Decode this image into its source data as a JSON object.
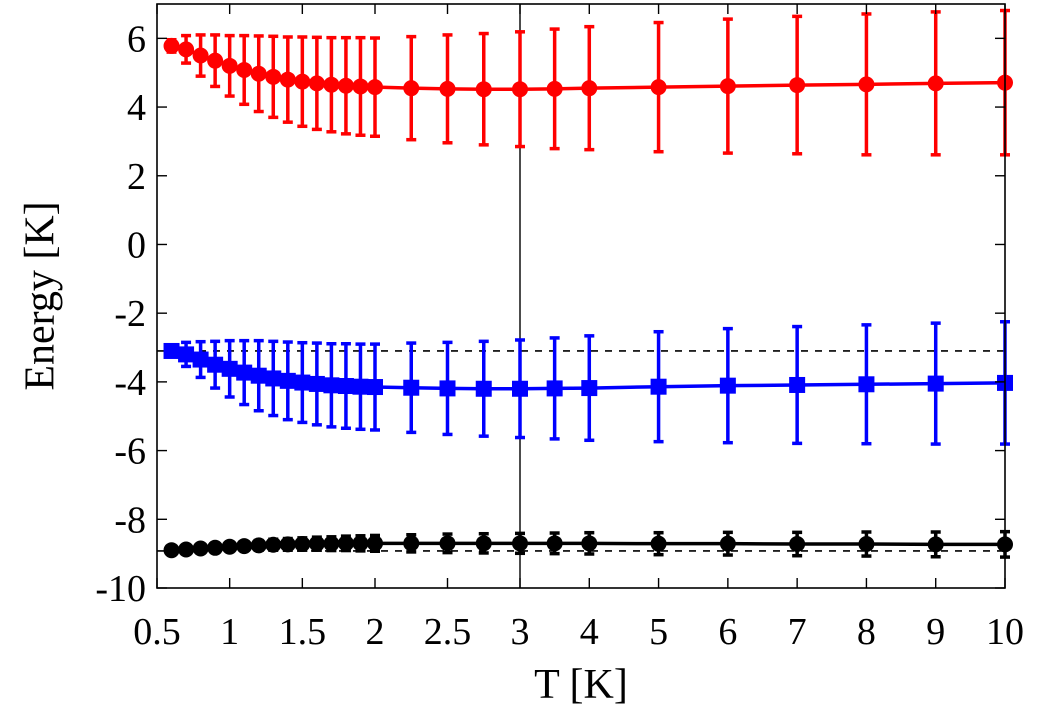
{
  "chart_data": {
    "type": "line",
    "title": "",
    "xlabel": "T [K]",
    "ylabel": "Energy [K]",
    "ylim": [
      -10,
      7
    ],
    "grid": false,
    "legend": "none",
    "x_scale": "piecewise-linear",
    "x_scale_note_breakpoints": [
      0.5,
      2,
      3,
      10
    ],
    "x_ticks": [
      0.5,
      1,
      1.5,
      2,
      2.5,
      3,
      4,
      5,
      6,
      7,
      8,
      9,
      10
    ],
    "x_tick_labels": [
      "0.5",
      "1",
      "1.5",
      "2",
      "2.5",
      "3",
      "4",
      "5",
      "6",
      "7",
      "8",
      "9",
      "10"
    ],
    "y_ticks": [
      -10,
      -8,
      -6,
      -4,
      -2,
      0,
      2,
      4,
      6
    ],
    "y_tick_labels": [
      "-10",
      "-8",
      "-6",
      "-4",
      "-2",
      "0",
      "2",
      "4",
      "6"
    ],
    "vertical_lines": [
      3
    ],
    "reference_lines": [
      {
        "y": -3.1,
        "color": "#000000",
        "style": "dashed"
      },
      {
        "y": -8.92,
        "color": "#000000",
        "style": "dashed"
      }
    ],
    "series": [
      {
        "color": "#ff0000",
        "marker": "circle",
        "x": [
          0.6,
          0.7,
          0.8,
          0.9,
          1.0,
          1.1,
          1.2,
          1.3,
          1.4,
          1.5,
          1.6,
          1.7,
          1.8,
          1.9,
          2.0,
          2.25,
          2.5,
          2.75,
          3.0,
          3.5,
          4,
          5,
          6,
          7,
          8,
          9,
          10
        ],
        "y": [
          5.78,
          5.68,
          5.5,
          5.35,
          5.2,
          5.08,
          4.97,
          4.88,
          4.8,
          4.74,
          4.69,
          4.65,
          4.62,
          4.6,
          4.58,
          4.55,
          4.53,
          4.52,
          4.52,
          4.53,
          4.55,
          4.58,
          4.61,
          4.64,
          4.66,
          4.69,
          4.71
        ],
        "err": [
          0.18,
          0.4,
          0.6,
          0.75,
          0.88,
          1.0,
          1.1,
          1.18,
          1.24,
          1.3,
          1.34,
          1.37,
          1.4,
          1.42,
          1.43,
          1.5,
          1.57,
          1.62,
          1.67,
          1.74,
          1.79,
          1.88,
          1.95,
          2.0,
          2.05,
          2.08,
          2.1
        ]
      },
      {
        "color": "#0000ff",
        "marker": "square",
        "x": [
          0.6,
          0.7,
          0.8,
          0.9,
          1.0,
          1.1,
          1.2,
          1.3,
          1.4,
          1.5,
          1.6,
          1.7,
          1.8,
          1.9,
          2.0,
          2.25,
          2.5,
          2.75,
          3.0,
          3.5,
          4,
          5,
          6,
          7,
          8,
          9,
          10
        ],
        "y": [
          -3.1,
          -3.2,
          -3.35,
          -3.5,
          -3.62,
          -3.73,
          -3.82,
          -3.9,
          -3.97,
          -4.02,
          -4.06,
          -4.1,
          -4.12,
          -4.14,
          -4.15,
          -4.17,
          -4.19,
          -4.2,
          -4.2,
          -4.19,
          -4.18,
          -4.14,
          -4.11,
          -4.09,
          -4.07,
          -4.05,
          -4.03
        ],
        "err": [
          0.15,
          0.35,
          0.52,
          0.68,
          0.82,
          0.93,
          1.02,
          1.08,
          1.13,
          1.16,
          1.19,
          1.21,
          1.23,
          1.24,
          1.25,
          1.3,
          1.34,
          1.38,
          1.42,
          1.47,
          1.52,
          1.6,
          1.66,
          1.7,
          1.73,
          1.76,
          1.78
        ]
      },
      {
        "color": "#000000",
        "marker": "circle",
        "x": [
          0.6,
          0.7,
          0.8,
          0.9,
          1.0,
          1.1,
          1.2,
          1.3,
          1.4,
          1.5,
          1.6,
          1.7,
          1.8,
          1.9,
          2.0,
          2.25,
          2.5,
          2.75,
          3.0,
          3.5,
          4,
          5,
          6,
          7,
          8,
          9,
          10
        ],
        "y": [
          -8.9,
          -8.88,
          -8.85,
          -8.83,
          -8.8,
          -8.78,
          -8.76,
          -8.74,
          -8.73,
          -8.72,
          -8.71,
          -8.71,
          -8.7,
          -8.7,
          -8.7,
          -8.7,
          -8.7,
          -8.7,
          -8.7,
          -8.7,
          -8.7,
          -8.71,
          -8.71,
          -8.72,
          -8.72,
          -8.73,
          -8.73
        ],
        "err": [
          0.02,
          0.04,
          0.06,
          0.08,
          0.1,
          0.12,
          0.14,
          0.16,
          0.17,
          0.18,
          0.19,
          0.2,
          0.21,
          0.22,
          0.23,
          0.25,
          0.27,
          0.28,
          0.29,
          0.3,
          0.31,
          0.32,
          0.33,
          0.34,
          0.35,
          0.36,
          0.37
        ]
      }
    ]
  }
}
